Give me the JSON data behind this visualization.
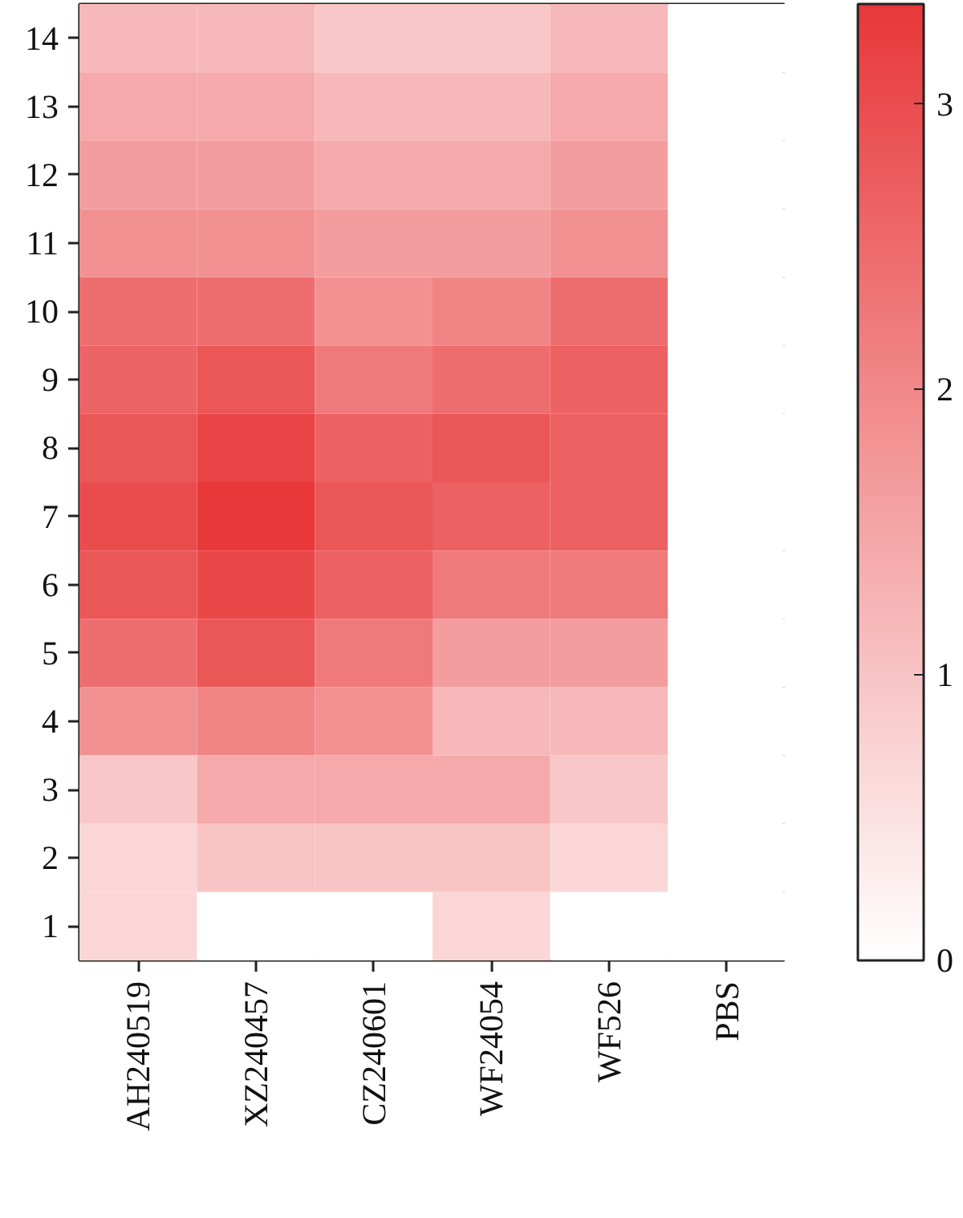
{
  "chart_data": {
    "type": "heatmap",
    "categories": [
      "AH240519",
      "XZ240457",
      "CZ240601",
      "WF24054",
      "WF526",
      "PBS"
    ],
    "y_categories": [
      "14",
      "13",
      "12",
      "11",
      "10",
      "9",
      "8",
      "7",
      "6",
      "5",
      "4",
      "3",
      "2",
      "1"
    ],
    "cells": [
      [
        1.2,
        1.2,
        0.95,
        0.95,
        1.2,
        0
      ],
      [
        1.45,
        1.45,
        1.2,
        1.2,
        1.45,
        0
      ],
      [
        1.65,
        1.65,
        1.45,
        1.45,
        1.65,
        0
      ],
      [
        1.85,
        1.85,
        1.65,
        1.65,
        1.85,
        0
      ],
      [
        2.45,
        2.45,
        1.85,
        2.05,
        2.45,
        0
      ],
      [
        2.6,
        2.85,
        2.25,
        2.45,
        2.65,
        0
      ],
      [
        2.85,
        3.15,
        2.65,
        2.85,
        2.65,
        0
      ],
      [
        3.0,
        3.35,
        2.85,
        2.65,
        2.65,
        0
      ],
      [
        2.85,
        3.1,
        2.65,
        2.25,
        2.25,
        0
      ],
      [
        2.45,
        2.85,
        2.25,
        1.65,
        1.65,
        0
      ],
      [
        1.85,
        2.05,
        1.85,
        1.2,
        1.2,
        0
      ],
      [
        0.95,
        1.45,
        1.45,
        1.45,
        0.95,
        0
      ],
      [
        0.7,
        1.0,
        1.0,
        1.0,
        0.7,
        0
      ],
      [
        0.7,
        0,
        0,
        0.7,
        0,
        0
      ]
    ],
    "color": "#e8383a",
    "clim": [
      0,
      3.35
    ],
    "cticks": [
      0,
      1,
      2,
      3
    ]
  }
}
